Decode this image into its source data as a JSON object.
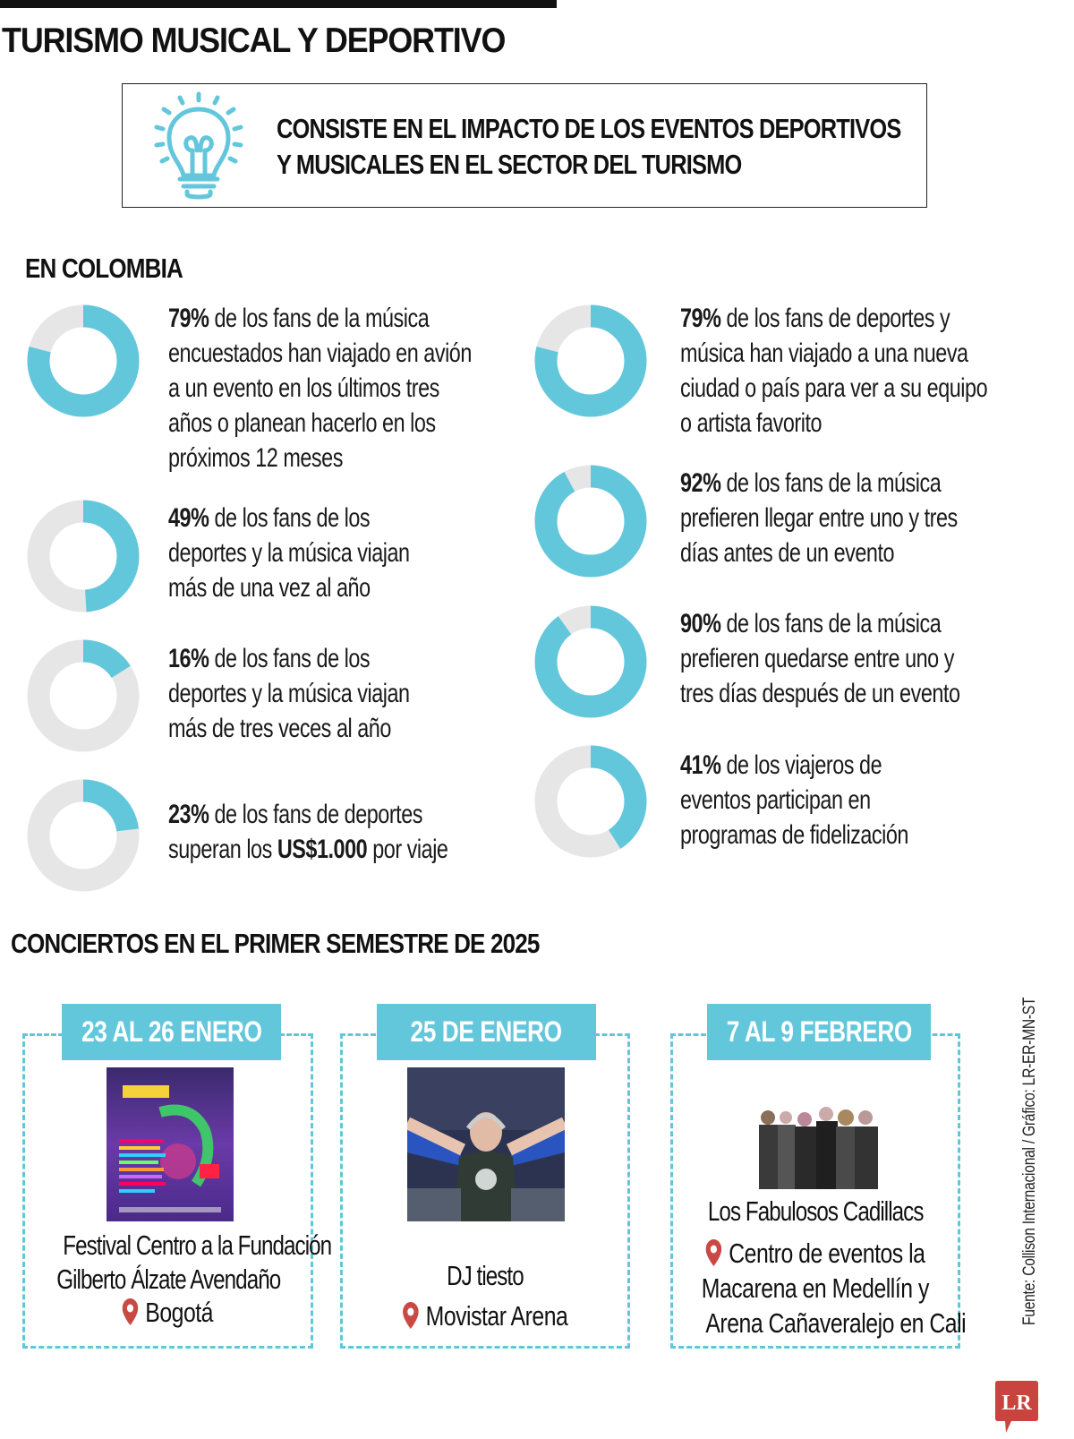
{
  "header": {
    "title": "TURISMO MUSICAL Y DEPORTIVO"
  },
  "definition": {
    "icon": "lightbulb-icon",
    "line1": "CONSISTE EN EL IMPACTO DE LOS EVENTOS DEPORTIVOS",
    "line2": "Y MUSICALES EN EL SECTOR DEL TURISMO"
  },
  "colombia": {
    "title": "EN COLOMBIA",
    "stats": [
      {
        "percent": "79%",
        "value": 79,
        "lines": [
          " de los fans de la música",
          "encuestados han viajado en avión",
          "a un evento en los últimos tres",
          "años o planean hacerlo en los",
          "próximos 12 meses"
        ]
      },
      {
        "percent": "49%",
        "value": 49,
        "lines": [
          " de los fans de los",
          "deportes y la música viajan",
          "más de una vez al año"
        ]
      },
      {
        "percent": "16%",
        "value": 16,
        "lines": [
          " de los fans de los",
          "deportes y la música viajan",
          "más de tres veces al año"
        ]
      },
      {
        "percent": "23%",
        "value": 23,
        "lines": [
          " de los fans de deportes",
          "superan los "
        ],
        "bold_amount": "US$1.000",
        "tail": " por viaje"
      },
      {
        "percent": "79%",
        "value": 79,
        "lines": [
          " de los fans de deportes y",
          "música han viajado a una nueva",
          "ciudad o país para ver a su equipo",
          "o artista favorito"
        ]
      },
      {
        "percent": "92%",
        "value": 92,
        "lines": [
          " de los fans de la música",
          "prefieren llegar entre uno y tres",
          "días antes de un evento"
        ]
      },
      {
        "percent": "90%",
        "value": 90,
        "lines": [
          " de los fans de la música",
          "prefieren quedarse entre uno y",
          "tres días después de un evento"
        ]
      },
      {
        "percent": "41%",
        "value": 41,
        "lines": [
          " de los viajeros de",
          "eventos participan en",
          "programas de fidelización"
        ]
      }
    ]
  },
  "concerts": {
    "title": "CONCIERTOS EN EL PRIMER SEMESTRE DE 2025",
    "items": [
      {
        "date": "23 AL 26 ENERO",
        "name_lines": [
          "Festival Centro a la Fundación",
          "Gilberto Álzate Avendaño"
        ],
        "location_lines": [
          "Bogotá"
        ],
        "image": "festival-poster"
      },
      {
        "date": "25 DE ENERO",
        "name_lines": [
          "DJ tiesto"
        ],
        "location_lines": [
          "Movistar Arena"
        ],
        "image": "dj-photo"
      },
      {
        "date": "7 AL 9 FEBRERO",
        "name_lines": [
          "Los Fabulosos Cadillacs"
        ],
        "location_lines": [
          "Centro de eventos la",
          "Macarena en Medellín y",
          "Arena Cañaveralejo en Cali"
        ],
        "image": "band-photo"
      }
    ]
  },
  "footer": {
    "source": "Fuente: Collison Internacional / Gráfico: LR-ER-MN-ST",
    "logo": "LR"
  },
  "colors": {
    "accent": "#63c7dc",
    "donut_rest": "#e6e6e6",
    "pin": "#c94a44",
    "logo": "#c9433f"
  },
  "chart_data": {
    "type": "pie",
    "title": "EN COLOMBIA",
    "categories": [
      "Fans de la música que han viajado en avión a un evento (últimos 3 años o próximos 12 meses)",
      "Fans de deportes y música que viajan más de una vez al año",
      "Fans de deportes y música que viajan más de tres veces al año",
      "Fans de deportes que superan US$1.000 por viaje",
      "Fans de deportes y música que han viajado a una nueva ciudad o país",
      "Fans de la música que prefieren llegar 1-3 días antes",
      "Fans de la música que prefieren quedarse 1-3 días después",
      "Viajeros de eventos en programas de fidelización"
    ],
    "values": [
      79,
      49,
      16,
      23,
      79,
      92,
      90,
      41
    ],
    "unit": "%",
    "style": "donut"
  }
}
